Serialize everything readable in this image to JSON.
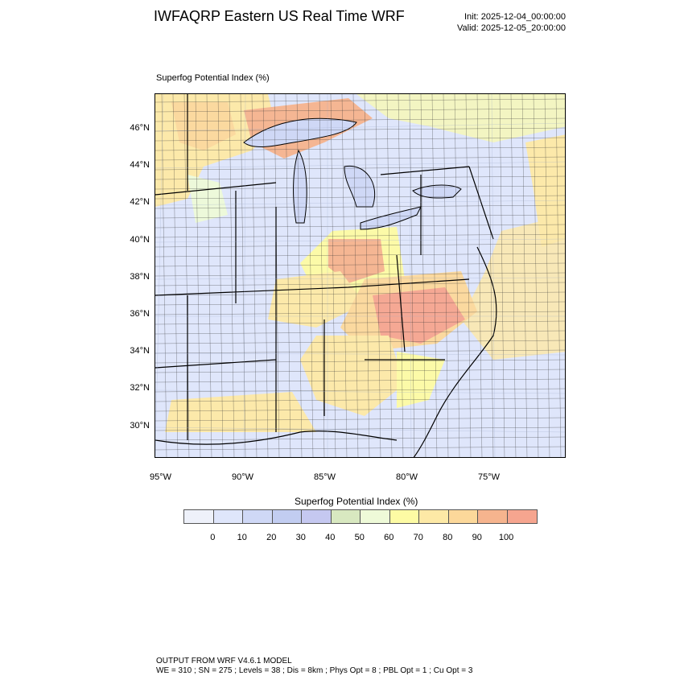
{
  "header": {
    "title": "IWFAQRP Eastern US Real Time WRF",
    "init": "Init: 2025-12-04_00:00:00",
    "valid": "Valid: 2025-12-05_20:00:00"
  },
  "plot": {
    "label": "Superfog Potential Index   (%)",
    "lat_ticks": [
      "46°N",
      "44°N",
      "42°N",
      "40°N",
      "38°N",
      "36°N",
      "34°N",
      "32°N",
      "30°N"
    ],
    "lon_ticks": [
      "95°W",
      "90°W",
      "85°W",
      "80°W",
      "75°W"
    ]
  },
  "colorbar": {
    "title": "Superfog Potential Index  (%)",
    "labels": [
      "0",
      "10",
      "20",
      "30",
      "40",
      "50",
      "60",
      "70",
      "80",
      "90",
      "100"
    ],
    "colors": [
      "#eef1fa",
      "#dfe6fb",
      "#cfd8f6",
      "#c2cdf1",
      "#c5c8f0",
      "#d8e8c0",
      "#eefad8",
      "#fdfba4",
      "#fde9a6",
      "#fcd89a",
      "#f6b48e",
      "#f6a58f"
    ]
  },
  "footer": {
    "line1": "OUTPUT FROM WRF V4.6.1 MODEL",
    "line2": "WE = 310 ; SN = 275 ; Levels = 38 ; Dis = 8km ; Phys Opt = 8 ; PBL Opt = 1 ; Cu Opt = 3"
  }
}
